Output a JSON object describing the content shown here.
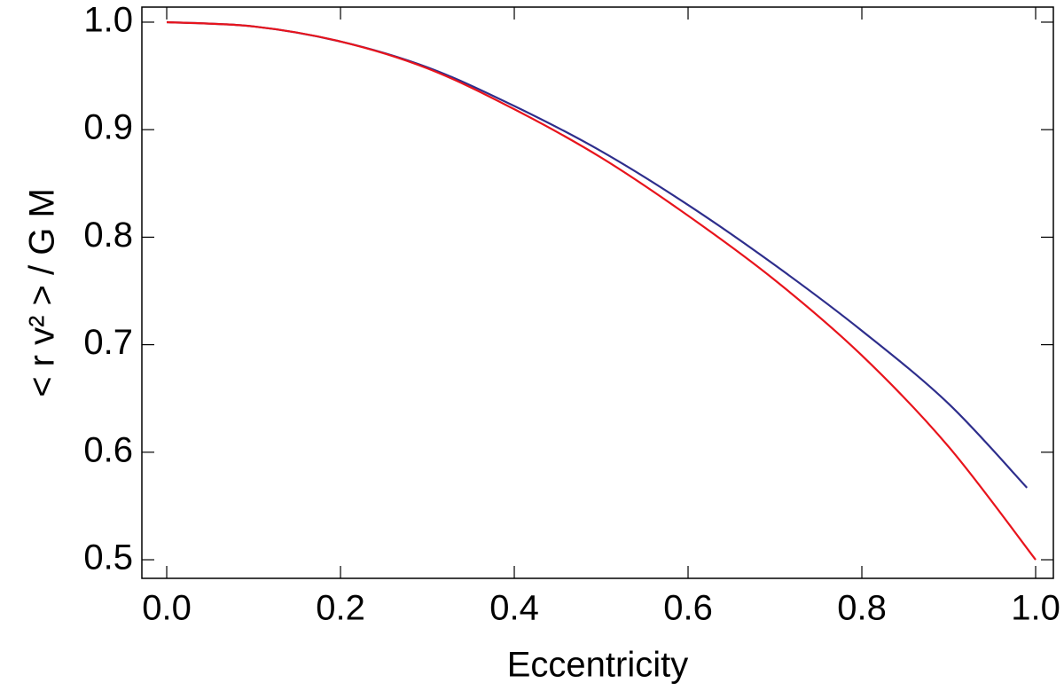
{
  "chart_data": {
    "type": "line",
    "x_label": "Eccentricity",
    "y_label": "< r v² > / G M",
    "xlim": [
      -0.0286,
      1.0204
    ],
    "ylim": [
      0.4827,
      1.014
    ],
    "xticks": [
      {
        "value": 0,
        "label": "0.0"
      },
      0.2,
      0.4,
      0.6,
      0.8,
      {
        "value": 1,
        "label": "1.0"
      }
    ],
    "yticks": [
      {
        "value": 0.5,
        "label": "0.5"
      },
      0.6,
      0.7,
      0.8,
      0.9,
      {
        "value": 1,
        "label": "1.0"
      }
    ],
    "series": [
      {
        "color": "#2e2e8c",
        "x": [
          0,
          0.1,
          0.2,
          0.3,
          0.4,
          0.5,
          0.6,
          0.7,
          0.8,
          0.9,
          0.99
        ],
        "values": [
          1.0,
          0.996,
          0.982,
          0.958,
          0.922,
          0.88,
          0.83,
          0.774,
          0.713,
          0.645,
          0.567
        ]
      },
      {
        "color": "#e8141c",
        "x": [
          0,
          0.1,
          0.2,
          0.3,
          0.4,
          0.5,
          0.6,
          0.7,
          0.8,
          0.9,
          1.0
        ],
        "values": [
          1.0,
          0.996,
          0.982,
          0.957,
          0.919,
          0.874,
          0.82,
          0.76,
          0.69,
          0.605,
          0.5
        ]
      }
    ]
  }
}
